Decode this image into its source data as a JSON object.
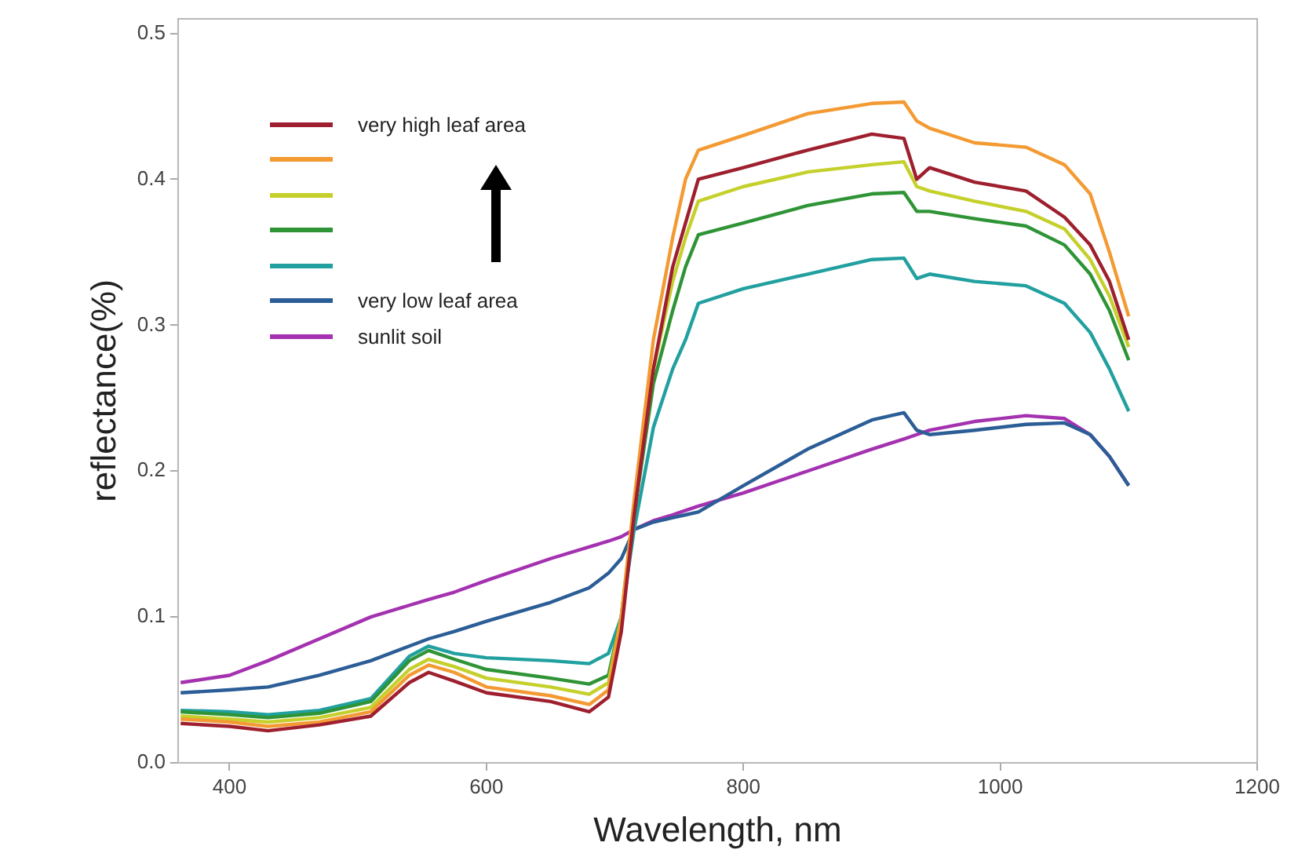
{
  "chart_data": {
    "type": "line",
    "xlabel": "Wavelength, nm",
    "ylabel": "reflectance(%)",
    "x": [
      362,
      400,
      430,
      470,
      510,
      540,
      555,
      575,
      600,
      650,
      680,
      695,
      705,
      715,
      730,
      745,
      755,
      765,
      800,
      850,
      900,
      925,
      935,
      945,
      980,
      1020,
      1050,
      1070,
      1085,
      1100
    ],
    "xlim": [
      360,
      1200
    ],
    "xticks": [
      400,
      600,
      800,
      1000,
      1200
    ],
    "ylim": [
      0,
      0.51
    ],
    "yticks": [
      {
        "value": 0,
        "label": "0.0"
      },
      0.1,
      0.2,
      0.3,
      0.4,
      0.5
    ],
    "grid": false,
    "legend": "top left",
    "marker": "none",
    "line_style": "solid",
    "series": [
      {
        "name": "very high leaf area",
        "color": "#9e1f2e",
        "values": [
          0.027,
          0.025,
          0.022,
          0.026,
          0.032,
          0.055,
          0.062,
          0.056,
          0.048,
          0.042,
          0.035,
          0.045,
          0.09,
          0.17,
          0.27,
          0.34,
          0.37,
          0.4,
          0.408,
          0.42,
          0.431,
          0.428,
          0.4,
          0.408,
          0.398,
          0.392,
          0.374,
          0.355,
          0.33,
          0.29
        ]
      },
      {
        "color": "#f39a32",
        "values": [
          0.03,
          0.028,
          0.025,
          0.028,
          0.035,
          0.06,
          0.067,
          0.062,
          0.052,
          0.046,
          0.04,
          0.05,
          0.1,
          0.18,
          0.29,
          0.36,
          0.4,
          0.42,
          0.43,
          0.445,
          0.452,
          0.453,
          0.44,
          0.435,
          0.425,
          0.422,
          0.41,
          0.39,
          0.35,
          0.306
        ]
      },
      {
        "color": "#c5d02c",
        "values": [
          0.032,
          0.03,
          0.028,
          0.031,
          0.038,
          0.064,
          0.071,
          0.066,
          0.058,
          0.052,
          0.047,
          0.055,
          0.1,
          0.175,
          0.27,
          0.33,
          0.36,
          0.385,
          0.395,
          0.405,
          0.41,
          0.412,
          0.395,
          0.392,
          0.385,
          0.378,
          0.366,
          0.345,
          0.32,
          0.285
        ]
      },
      {
        "color": "#2f9436",
        "values": [
          0.035,
          0.033,
          0.031,
          0.034,
          0.042,
          0.07,
          0.077,
          0.071,
          0.064,
          0.058,
          0.054,
          0.06,
          0.1,
          0.17,
          0.26,
          0.31,
          0.34,
          0.362,
          0.37,
          0.382,
          0.39,
          0.391,
          0.378,
          0.378,
          0.373,
          0.368,
          0.355,
          0.335,
          0.31,
          0.276
        ]
      },
      {
        "color": "#22a0a0",
        "values": [
          0.036,
          0.035,
          0.033,
          0.036,
          0.044,
          0.073,
          0.08,
          0.075,
          0.072,
          0.07,
          0.068,
          0.075,
          0.1,
          0.16,
          0.23,
          0.27,
          0.29,
          0.315,
          0.325,
          0.335,
          0.345,
          0.346,
          0.332,
          0.335,
          0.33,
          0.327,
          0.315,
          0.295,
          0.27,
          0.241
        ]
      },
      {
        "name": "very low leaf area",
        "color": "#2b5d96",
        "values": [
          0.048,
          0.05,
          0.052,
          0.06,
          0.07,
          0.08,
          0.085,
          0.09,
          0.097,
          0.11,
          0.12,
          0.13,
          0.14,
          0.16,
          0.165,
          0.168,
          0.17,
          0.172,
          0.19,
          0.215,
          0.235,
          0.24,
          0.228,
          0.225,
          0.228,
          0.232,
          0.233,
          0.225,
          0.21,
          0.19
        ]
      },
      {
        "name": "sunlit soil",
        "color": "#a432b0",
        "values": [
          0.055,
          0.06,
          0.07,
          0.085,
          0.1,
          0.108,
          0.112,
          0.117,
          0.125,
          0.14,
          0.148,
          0.152,
          0.155,
          0.16,
          0.166,
          0.17,
          0.173,
          0.176,
          0.185,
          0.2,
          0.215,
          0.222,
          0.225,
          0.228,
          0.234,
          0.238,
          0.236,
          0.225,
          0.21,
          0.19
        ]
      }
    ]
  }
}
